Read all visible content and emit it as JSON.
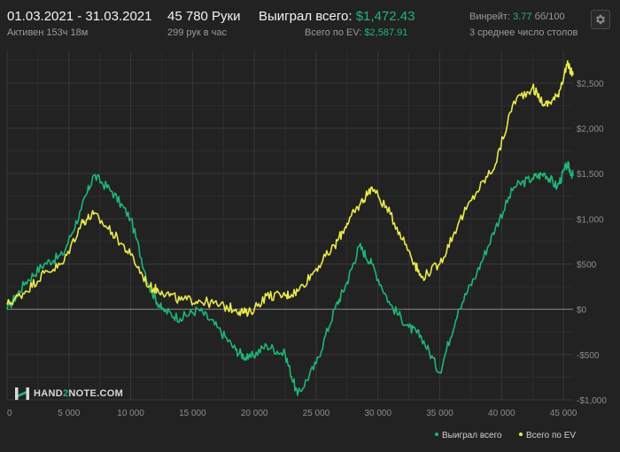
{
  "header": {
    "date_range": "01.03.2021 - 31.03.2021",
    "active_time": "Активен 153ч 18м",
    "hands": "45 780 Руки",
    "hands_per_hour": "299 рук в час",
    "won_label": "Выиграл всего:",
    "won_value": "$1,472.43",
    "ev_label": "Всего по EV:",
    "ev_value": "$2,587.91",
    "winrate_label": "Винрейт:",
    "winrate_value": "3.77",
    "winrate_unit": "бб/100",
    "tables": "3 среднее число столов"
  },
  "logo": {
    "part1": "HAND",
    "part2": "2",
    "part3": "NOTE.COM"
  },
  "legend": {
    "won": "Выиграл всего",
    "ev": "Всего по EV"
  },
  "colors": {
    "won": "#1fb676",
    "ev": "#eaea4c",
    "background": "#222222",
    "grid": "#333333",
    "zero_line": "#8a8a8a"
  },
  "chart_data": {
    "type": "line",
    "xlabel": "",
    "ylabel": "",
    "xlim": [
      0,
      45780
    ],
    "ylim": [
      -1000,
      2850
    ],
    "x_ticks": [
      {
        "value": 0,
        "label": "0"
      },
      {
        "value": 5000,
        "label": "5 000"
      },
      {
        "value": 10000,
        "label": "10 000"
      },
      {
        "value": 15000,
        "label": "15 000"
      },
      {
        "value": 20000,
        "label": "20 000"
      },
      {
        "value": 25000,
        "label": "25 000"
      },
      {
        "value": 30000,
        "label": "30 000"
      },
      {
        "value": 35000,
        "label": "35 000"
      },
      {
        "value": 40000,
        "label": "40 000"
      },
      {
        "value": 45000,
        "label": "45 000"
      }
    ],
    "y_ticks": [
      {
        "value": 2500,
        "label": "$2,500"
      },
      {
        "value": 2000,
        "label": "$2,000"
      },
      {
        "value": 1500,
        "label": "$1,500"
      },
      {
        "value": 1000,
        "label": "$1,000"
      },
      {
        "value": 500,
        "label": "$500"
      },
      {
        "value": 0,
        "label": "$0"
      },
      {
        "value": -500,
        "label": "-$500"
      },
      {
        "value": -1000,
        "label": "-$1,000"
      }
    ],
    "grid": true,
    "legend_position": "bottom-right",
    "series": [
      {
        "name": "Выиграл всего",
        "x": [
          0,
          1500,
          3000,
          4500,
          6000,
          7000,
          8500,
          10000,
          11500,
          12500,
          14000,
          15500,
          17000,
          18500,
          19500,
          21000,
          22500,
          23500,
          25000,
          26500,
          27500,
          28500,
          29500,
          31000,
          32500,
          33500,
          35000,
          36500,
          38000,
          39500,
          41000,
          42500,
          43500,
          44500,
          45300,
          45780
        ],
        "values": [
          0,
          300,
          500,
          600,
          1100,
          1480,
          1300,
          1000,
          250,
          0,
          -100,
          0,
          -200,
          -450,
          -550,
          -400,
          -500,
          -950,
          -600,
          0,
          300,
          700,
          500,
          50,
          -200,
          -300,
          -700,
          0,
          400,
          900,
          1350,
          1450,
          1500,
          1350,
          1600,
          1472
        ]
      },
      {
        "name": "Всего по EV",
        "x": [
          0,
          1500,
          3000,
          4500,
          6000,
          7000,
          8500,
          10000,
          11500,
          12500,
          14000,
          15500,
          17000,
          18500,
          19500,
          21000,
          22500,
          23500,
          25000,
          26500,
          27500,
          28500,
          29500,
          31000,
          32500,
          33500,
          35000,
          36500,
          38000,
          39500,
          41000,
          42500,
          43500,
          44500,
          45300,
          45780
        ],
        "values": [
          50,
          200,
          400,
          500,
          950,
          1050,
          850,
          600,
          250,
          200,
          100,
          100,
          50,
          0,
          -50,
          150,
          150,
          200,
          450,
          700,
          950,
          1150,
          1350,
          1050,
          650,
          350,
          500,
          950,
          1300,
          1600,
          2300,
          2450,
          2250,
          2350,
          2700,
          2588
        ]
      }
    ]
  }
}
